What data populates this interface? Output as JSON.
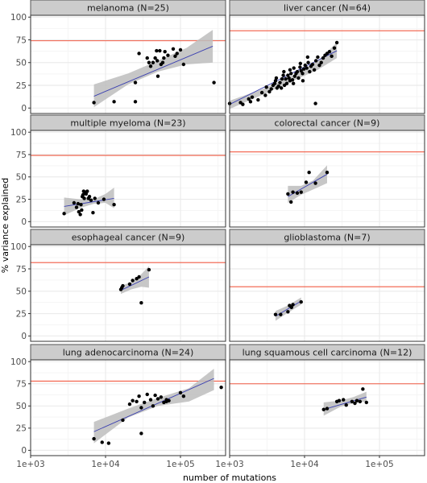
{
  "colors": {
    "panel_bg": "#ffffff",
    "grid_major": "#ebebeb",
    "grid_minor": "#f5f5f5",
    "strip_bg": "#cccccc",
    "strip_border": "#555555",
    "panel_border": "#333333",
    "points": "#000000",
    "fit_line": "#3a3fb0",
    "ci_band": "#bdbdbd",
    "reference_line": "#f25c45"
  },
  "chart_data": {
    "type": "scatter",
    "xlabel": "number of mutations",
    "ylabel": "% variance explained",
    "x_scale": "log10",
    "xlim": [
      1000,
      400000
    ],
    "ylim": [
      -6,
      102
    ],
    "x_ticks": [
      1000,
      10000,
      100000
    ],
    "x_tick_labels": [
      "1e+03",
      "1e+04",
      "1e+05"
    ],
    "y_ticks": [
      0,
      25,
      50,
      75,
      100
    ],
    "y_tick_labels": [
      "0",
      "25",
      "50",
      "75",
      "100"
    ],
    "grid": true,
    "layout": "facet grid, 4 rows x 2 columns",
    "panels": [
      {
        "title": "melanoma (N=25)",
        "reference_line": 74,
        "fit": {
          "x": [
            7000,
            270000
          ],
          "y": [
            13,
            68
          ]
        },
        "ci_band": {
          "x": [
            7000,
            20000,
            50000,
            120000,
            270000
          ],
          "upper": [
            26,
            38,
            52,
            66,
            86
          ],
          "lower": [
            1,
            26,
            40,
            48,
            50
          ]
        },
        "points": [
          [
            7000,
            6
          ],
          [
            13000,
            7
          ],
          [
            25000,
            7
          ],
          [
            25000,
            28
          ],
          [
            28000,
            60
          ],
          [
            36000,
            55
          ],
          [
            40000,
            46
          ],
          [
            43000,
            50
          ],
          [
            48000,
            63
          ],
          [
            49000,
            52
          ],
          [
            50000,
            35
          ],
          [
            53000,
            63
          ],
          [
            55000,
            48
          ],
          [
            60000,
            55
          ],
          [
            62000,
            62
          ],
          [
            68000,
            58
          ],
          [
            80000,
            65
          ],
          [
            85000,
            57
          ],
          [
            100000,
            64
          ],
          [
            110000,
            48
          ],
          [
            280000,
            28
          ],
          [
            46000,
            55
          ],
          [
            38000,
            50
          ],
          [
            58000,
            50
          ],
          [
            90000,
            60
          ]
        ]
      },
      {
        "title": "liver cancer (N=64)",
        "reference_line": 85,
        "fit": {
          "x": [
            1000,
            27000
          ],
          "y": [
            4,
            63
          ]
        },
        "ci_band": {
          "x": [
            1000,
            3000,
            7000,
            15000,
            27000
          ],
          "upper": [
            8,
            22,
            36,
            52,
            72
          ],
          "lower": [
            -1,
            16,
            30,
            42,
            55
          ]
        },
        "points": [
          [
            1000,
            5
          ],
          [
            1400,
            6
          ],
          [
            1500,
            4
          ],
          [
            1800,
            10
          ],
          [
            1900,
            7
          ],
          [
            2000,
            12
          ],
          [
            2400,
            9
          ],
          [
            2700,
            17
          ],
          [
            3000,
            14
          ],
          [
            3100,
            23
          ],
          [
            3400,
            18
          ],
          [
            3600,
            21
          ],
          [
            3800,
            25
          ],
          [
            4000,
            27
          ],
          [
            4100,
            30
          ],
          [
            4300,
            22
          ],
          [
            4500,
            24
          ],
          [
            4700,
            28
          ],
          [
            4900,
            22
          ],
          [
            5000,
            32
          ],
          [
            5200,
            36
          ],
          [
            5400,
            25
          ],
          [
            5600,
            32
          ],
          [
            5800,
            27
          ],
          [
            6000,
            36
          ],
          [
            6200,
            33
          ],
          [
            6400,
            30
          ],
          [
            6600,
            38
          ],
          [
            6900,
            31
          ],
          [
            7100,
            27
          ],
          [
            7400,
            35
          ],
          [
            7700,
            38
          ],
          [
            8000,
            40
          ],
          [
            8300,
            33
          ],
          [
            8700,
            45
          ],
          [
            9000,
            41
          ],
          [
            9400,
            38
          ],
          [
            9800,
            43
          ],
          [
            10200,
            47
          ],
          [
            10700,
            44
          ],
          [
            11200,
            50
          ],
          [
            11700,
            40
          ],
          [
            12200,
            46
          ],
          [
            12800,
            48
          ],
          [
            13500,
            42
          ],
          [
            14200,
            52
          ],
          [
            15000,
            56
          ],
          [
            15800,
            47
          ],
          [
            16700,
            50
          ],
          [
            17700,
            55
          ],
          [
            18800,
            58
          ],
          [
            20000,
            60
          ],
          [
            21500,
            62
          ],
          [
            23000,
            57
          ],
          [
            25000,
            66
          ],
          [
            27000,
            72
          ],
          [
            9500,
            30
          ],
          [
            6400,
            42
          ],
          [
            14000,
            5
          ],
          [
            11000,
            56
          ],
          [
            7200,
            44
          ],
          [
            5300,
            40
          ],
          [
            4200,
            33
          ],
          [
            8800,
            49
          ]
        ]
      },
      {
        "title": "multiple myeloma (N=23)",
        "reference_line": 74,
        "fit": {
          "x": [
            2800,
            13000
          ],
          "y": [
            17,
            26
          ]
        },
        "ci_band": {
          "x": [
            2800,
            4500,
            7000,
            10000,
            13000
          ],
          "upper": [
            27,
            25,
            25,
            31,
            38
          ],
          "lower": [
            7,
            15,
            20,
            21,
            15
          ]
        },
        "points": [
          [
            2800,
            9
          ],
          [
            3800,
            21
          ],
          [
            4100,
            16
          ],
          [
            4300,
            20
          ],
          [
            4400,
            11
          ],
          [
            4600,
            8
          ],
          [
            4700,
            19
          ],
          [
            4800,
            13
          ],
          [
            4900,
            28
          ],
          [
            5000,
            30
          ],
          [
            5100,
            34
          ],
          [
            5200,
            26
          ],
          [
            5300,
            33
          ],
          [
            5500,
            31
          ],
          [
            5700,
            34
          ],
          [
            5900,
            26
          ],
          [
            6100,
            28
          ],
          [
            6400,
            24
          ],
          [
            6800,
            10
          ],
          [
            7200,
            26
          ],
          [
            8000,
            21
          ],
          [
            9500,
            25
          ],
          [
            13000,
            19
          ]
        ]
      },
      {
        "title": "colorectal cancer (N=9)",
        "reference_line": 78,
        "fit": {
          "x": [
            6000,
            20000
          ],
          "y": [
            28,
            53
          ]
        },
        "ci_band": {
          "x": [
            6000,
            9000,
            13000,
            20000
          ],
          "upper": [
            40,
            40,
            46,
            63
          ],
          "lower": [
            21,
            30,
            36,
            43
          ]
        },
        "points": [
          [
            6000,
            31
          ],
          [
            6600,
            22
          ],
          [
            7000,
            33
          ],
          [
            8000,
            32
          ],
          [
            9000,
            33
          ],
          [
            10500,
            44
          ],
          [
            11500,
            55
          ],
          [
            14000,
            43
          ],
          [
            20000,
            55
          ]
        ]
      },
      {
        "title": "esophageal cancer (N=9)",
        "reference_line": 82,
        "fit": {
          "x": [
            16000,
            38000
          ],
          "y": [
            51,
            66
          ]
        },
        "ci_band": {
          "x": [
            16000,
            22000,
            30000,
            38000
          ],
          "upper": [
            56,
            60,
            69,
            78
          ],
          "lower": [
            47,
            52,
            55,
            54
          ]
        },
        "points": [
          [
            16000,
            52
          ],
          [
            16500,
            54
          ],
          [
            17000,
            56
          ],
          [
            21000,
            58
          ],
          [
            23000,
            62
          ],
          [
            26000,
            64
          ],
          [
            28000,
            66
          ],
          [
            30000,
            37
          ],
          [
            38000,
            74
          ]
        ]
      },
      {
        "title": "glioblastoma (N=7)",
        "reference_line": 55,
        "fit": {
          "x": [
            4100,
            9000
          ],
          "y": [
            22,
            39
          ]
        },
        "ci_band": {
          "x": [
            4100,
            6000,
            9000
          ],
          "upper": [
            28,
            34,
            43
          ],
          "lower": [
            17,
            26,
            35
          ]
        },
        "points": [
          [
            4100,
            24
          ],
          [
            4800,
            24
          ],
          [
            6000,
            27
          ],
          [
            6300,
            34
          ],
          [
            6700,
            32
          ],
          [
            7000,
            35
          ],
          [
            9000,
            38
          ]
        ]
      },
      {
        "title": "lung adenocarcinoma (N=24)",
        "reference_line": 78,
        "fit": {
          "x": [
            7000,
            280000
          ],
          "y": [
            21,
            81
          ]
        },
        "ci_band": {
          "x": [
            7000,
            20000,
            50000,
            130000,
            280000
          ],
          "upper": [
            32,
            47,
            59,
            70,
            92
          ],
          "lower": [
            8,
            37,
            50,
            55,
            68
          ]
        },
        "points": [
          [
            7000,
            13
          ],
          [
            9000,
            9
          ],
          [
            11000,
            8
          ],
          [
            17000,
            34
          ],
          [
            21000,
            52
          ],
          [
            23000,
            56
          ],
          [
            26000,
            55
          ],
          [
            28000,
            61
          ],
          [
            30000,
            19
          ],
          [
            33000,
            54
          ],
          [
            36000,
            63
          ],
          [
            40000,
            57
          ],
          [
            43000,
            50
          ],
          [
            46000,
            62
          ],
          [
            50000,
            58
          ],
          [
            55000,
            60
          ],
          [
            60000,
            54
          ],
          [
            65000,
            57
          ],
          [
            70000,
            56
          ],
          [
            100000,
            65
          ],
          [
            110000,
            61
          ],
          [
            350000,
            71
          ],
          [
            30000,
            48
          ],
          [
            65000,
            55
          ]
        ]
      },
      {
        "title": "lung squamous cell carcinoma (N=12)",
        "reference_line": 75,
        "fit": {
          "x": [
            18000,
            67000
          ],
          "y": [
            46,
            60
          ]
        },
        "ci_band": {
          "x": [
            18000,
            30000,
            45000,
            67000
          ],
          "upper": [
            54,
            56,
            60,
            66
          ],
          "lower": [
            39,
            49,
            53,
            55
          ]
        },
        "points": [
          [
            18000,
            46
          ],
          [
            20000,
            47
          ],
          [
            27000,
            55
          ],
          [
            29000,
            56
          ],
          [
            33000,
            57
          ],
          [
            36000,
            51
          ],
          [
            43000,
            55
          ],
          [
            47000,
            53
          ],
          [
            50000,
            56
          ],
          [
            55000,
            55
          ],
          [
            60000,
            69
          ],
          [
            67000,
            54
          ]
        ]
      }
    ]
  }
}
